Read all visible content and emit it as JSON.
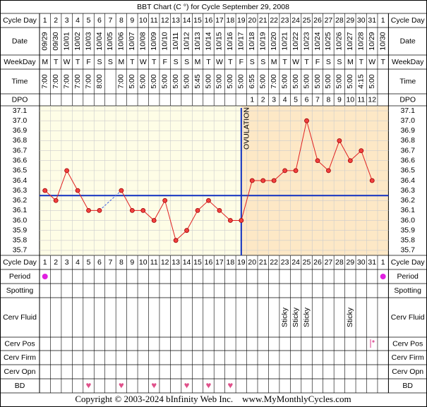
{
  "title": "BBT Chart (C °) for Cycle September 29, 2008",
  "row_labels": {
    "cycle_day": "Cycle Day",
    "date": "Date",
    "weekday": "WeekDay",
    "time": "Time",
    "dpo": "DPO",
    "period": "Period",
    "spotting": "Spotting",
    "cerv_fluid": "Cerv Fluid",
    "cerv_pos": "Cerv Pos",
    "cerv_firm": "Cerv Firm",
    "cerv_opn": "Cerv Opn",
    "bd": "BD"
  },
  "cycle_days": [
    1,
    2,
    3,
    4,
    5,
    6,
    7,
    8,
    9,
    10,
    11,
    12,
    13,
    14,
    15,
    16,
    17,
    18,
    19,
    20,
    21,
    22,
    23,
    24,
    25,
    26,
    27,
    28,
    29,
    30,
    31,
    1
  ],
  "dates": [
    "09/29",
    "09/30",
    "10/01",
    "10/02",
    "10/03",
    "10/04",
    "10/05",
    "10/06",
    "10/07",
    "10/08",
    "10/09",
    "10/10",
    "10/11",
    "10/12",
    "10/13",
    "10/14",
    "10/15",
    "10/16",
    "10/17",
    "10/18",
    "10/19",
    "10/20",
    "10/21",
    "10/22",
    "10/23",
    "10/24",
    "10/25",
    "10/26",
    "10/27",
    "10/28",
    "10/29",
    "10/30"
  ],
  "weekdays": [
    "M",
    "T",
    "W",
    "T",
    "F",
    "S",
    "S",
    "M",
    "T",
    "W",
    "T",
    "F",
    "S",
    "S",
    "M",
    "T",
    "W",
    "T",
    "F",
    "S",
    "S",
    "M",
    "T",
    "W",
    "T",
    "F",
    "S",
    "S",
    "M",
    "T",
    "W",
    "T"
  ],
  "times": [
    "7:00",
    "7:00",
    "7:00",
    "7:00",
    "7:00",
    "8:00",
    null,
    "7:00",
    "5:00",
    "5:00",
    "5:00",
    "5:00",
    "5:00",
    "5:00",
    "5:45",
    "5:00",
    "5:00",
    "5:00",
    "5:00",
    "6:55",
    "5:00",
    "7:00",
    "5:00",
    "5:00",
    "5:00",
    "5:00",
    "5:00",
    "5:00",
    "5:00",
    "4:15",
    "5:00",
    null
  ],
  "dpo": [
    null,
    null,
    null,
    null,
    null,
    null,
    null,
    null,
    null,
    null,
    null,
    null,
    null,
    null,
    null,
    null,
    null,
    null,
    null,
    1,
    2,
    3,
    4,
    5,
    6,
    7,
    8,
    9,
    10,
    11,
    12,
    null
  ],
  "period": [
    true,
    false,
    false,
    false,
    false,
    false,
    false,
    false,
    false,
    false,
    false,
    false,
    false,
    false,
    false,
    false,
    false,
    false,
    false,
    false,
    false,
    false,
    false,
    false,
    false,
    false,
    false,
    false,
    false,
    false,
    false,
    true
  ],
  "cerv_fluid": [
    null,
    null,
    null,
    null,
    null,
    null,
    null,
    null,
    null,
    null,
    null,
    null,
    null,
    null,
    null,
    null,
    null,
    null,
    null,
    null,
    null,
    null,
    "Sticky",
    "Sticky",
    "Sticky",
    null,
    null,
    null,
    "Sticky",
    null,
    null,
    null
  ],
  "bd": [
    null,
    null,
    null,
    null,
    "♥",
    null,
    null,
    "♥",
    null,
    null,
    "♥",
    null,
    null,
    "♥",
    null,
    "♥",
    null,
    "♥",
    null,
    null,
    null,
    null,
    null,
    null,
    null,
    null,
    null,
    null,
    null,
    null,
    null,
    null
  ],
  "footer": "Copyright © 2003-2024 bInfinity Web Inc.    www.MyMonthlyCycles.com",
  "chart_data": {
    "type": "line",
    "color": "#e02020",
    "values": [
      36.3,
      36.2,
      36.5,
      36.3,
      36.1,
      36.1,
      null,
      36.3,
      36.1,
      36.1,
      36.0,
      36.2,
      35.8,
      35.9,
      36.1,
      36.2,
      36.1,
      36.0,
      36.0,
      36.4,
      36.4,
      36.4,
      36.5,
      36.5,
      37.0,
      36.6,
      36.5,
      36.8,
      36.6,
      36.7,
      36.4,
      null
    ],
    "ylim": [
      35.65,
      37.15
    ],
    "yticks": [
      37.1,
      {
        "value": 37.0,
        "label": "37.0"
      },
      36.9,
      36.8,
      36.7,
      36.6,
      36.5,
      36.4,
      36.3,
      36.2,
      36.1,
      {
        "value": 36.0,
        "label": "36.0"
      },
      35.9,
      35.8,
      35.7
    ],
    "grid": true,
    "coverline": 36.25,
    "ovulation_day": 19,
    "ovulation_label": "OVULATION"
  }
}
